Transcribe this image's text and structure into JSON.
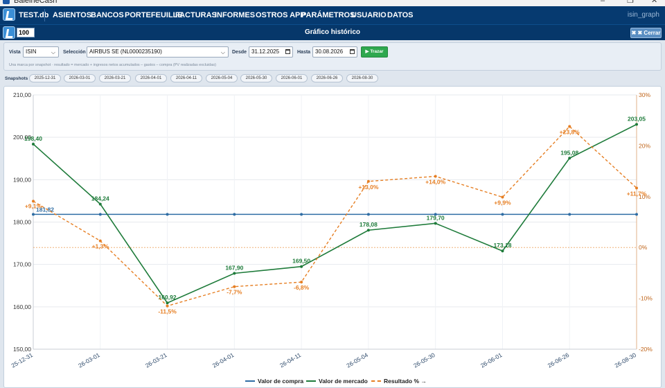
{
  "window": {
    "title": "BaleineCash"
  },
  "menubar": {
    "brand": "TEST.db",
    "items": [
      "ASIENTOS",
      "BANCOS",
      "PORTEFEUILLE",
      "FACTURAS",
      "INFORMES",
      "OSTROS APP",
      "PARÁMETROS",
      "USUARIO",
      "DATOS"
    ],
    "context": "isin_graph"
  },
  "toolbar": {
    "zoom_value": "100",
    "page_title": "Gráfico histórico",
    "close_label": "✖ ✖ Cerrar"
  },
  "filters": {
    "vista_label": "Vista",
    "vista_value": "ISIN",
    "seleccion_label": "Selección",
    "seleccion_value": "AIRBUS SE (NL0000235190)",
    "desde_label": "Desde",
    "desde_value": "31.12.2025",
    "hasta_label": "Hasta",
    "hasta_value": "30.08.2026",
    "trazar_label": "▶ Trazar",
    "hint": "Una marca por snapshot · resultado = mercado + ingresos netos acumulados – gastos – compra (PV realizadas excluidas)"
  },
  "snapshots": {
    "label": "Snapshots",
    "dates": [
      "2025-12-31",
      "2026-03-01",
      "2026-03-21",
      "2026-04-01",
      "2026-04-11",
      "2026-05-04",
      "2026-05-30",
      "2026-06-01",
      "2026-06-26",
      "2026-08-30"
    ]
  },
  "chart_data": {
    "type": "line",
    "categories": [
      "25-12-31",
      "26-03-01",
      "26-03-21",
      "26-04-01",
      "26-04-11",
      "26-05-04",
      "26-05-30",
      "26-06-01",
      "26-06-26",
      "26-08-30"
    ],
    "y_left": {
      "ylim": [
        150,
        210
      ],
      "ticks": [
        "150,00",
        "160,00",
        "170,00",
        "180,00",
        "190,00",
        "200,00",
        "210,00"
      ]
    },
    "y_right": {
      "ylim": [
        -20,
        30
      ],
      "ticks": [
        "-20%",
        "-10%",
        "0%",
        "10%",
        "20%",
        "30%"
      ]
    },
    "grid": true,
    "legend_position": "bottom",
    "series": [
      {
        "name": "Valor de compra",
        "axis": "left",
        "color": "#2e6da4",
        "style": "solid",
        "values": [
          181.82,
          181.82,
          181.82,
          181.82,
          181.82,
          181.82,
          181.82,
          181.82,
          181.82,
          181.82
        ],
        "labels": [
          "181,82",
          "",
          "",
          "",
          "",
          "",
          "",
          "",
          "",
          ""
        ]
      },
      {
        "name": "Valor de mercado",
        "axis": "left",
        "color": "#1e7b3a",
        "style": "solid",
        "values": [
          198.4,
          184.24,
          160.92,
          167.9,
          169.5,
          178.08,
          179.7,
          173.18,
          195.08,
          203.05
        ],
        "labels": [
          "198,40",
          "184,24",
          "160,92",
          "167,90",
          "169,50",
          "178,08",
          "179,70",
          "173,18",
          "195,08",
          "203,05"
        ]
      },
      {
        "name": "Resultado % →",
        "axis": "right",
        "color": "#e67e22",
        "style": "dashed",
        "values": [
          9.1,
          1.3,
          -11.5,
          -7.7,
          -6.8,
          13.0,
          14.0,
          9.9,
          23.8,
          11.7
        ],
        "labels": [
          "+9,1%",
          "+1,3%",
          "-11,5%",
          "-7,7%",
          "-6,8%",
          "+13,0%",
          "+14,0%",
          "+9,9%",
          "+23,8%",
          "+11,7%"
        ]
      }
    ],
    "zero_reference": {
      "axis": "right",
      "value": 0,
      "color": "#e67e22"
    }
  }
}
